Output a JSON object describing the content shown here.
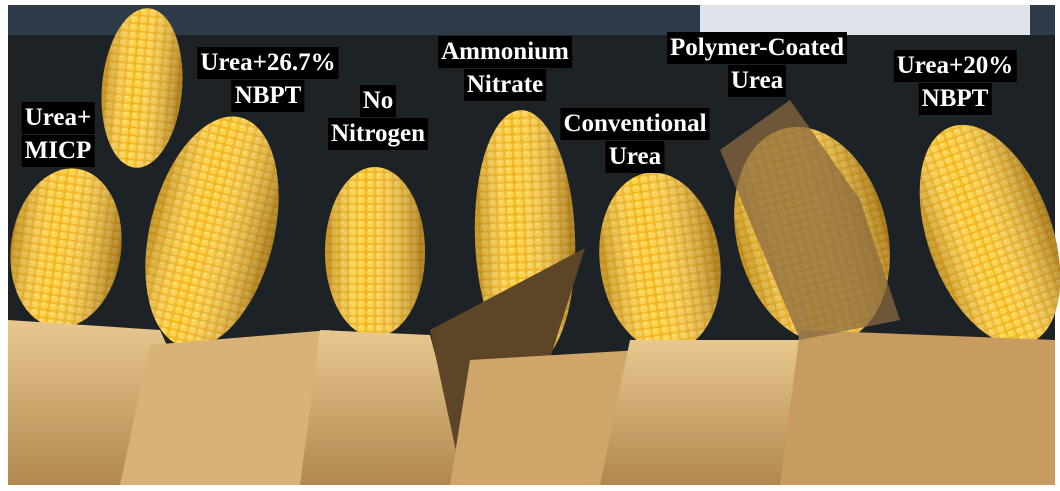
{
  "labels": [
    {
      "lines": [
        "Urea+",
        "MICP"
      ]
    },
    {
      "lines": [
        "Urea+26.7%",
        "NBPT"
      ]
    },
    {
      "lines": [
        "No",
        "Nitrogen"
      ]
    },
    {
      "lines": [
        "Ammonium",
        "Nitrate"
      ]
    },
    {
      "lines": [
        "Conventional",
        "Urea"
      ]
    },
    {
      "lines": [
        "Polymer-Coated",
        "Urea"
      ]
    },
    {
      "lines": [
        "Urea+20%",
        "NBPT"
      ]
    }
  ]
}
